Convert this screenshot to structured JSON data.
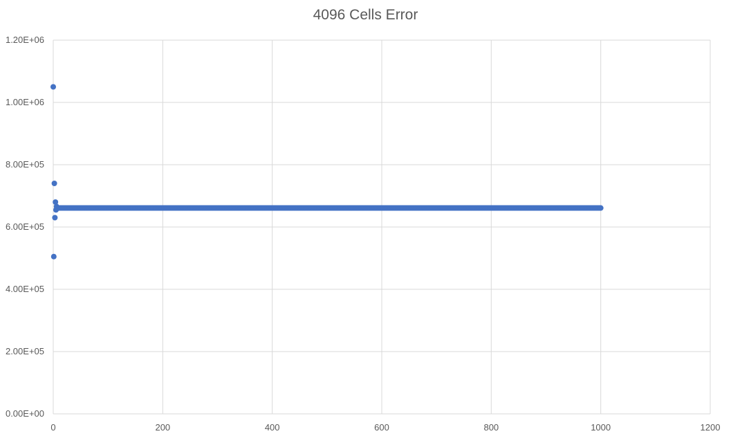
{
  "chart_data": {
    "type": "scatter",
    "title": "4096 Cells Error",
    "xlabel": "",
    "ylabel": "",
    "xlim": [
      0,
      1200
    ],
    "ylim": [
      0,
      1200000
    ],
    "x_ticks": [
      0,
      200,
      400,
      600,
      800,
      1000,
      1200
    ],
    "x_tick_labels": [
      "0",
      "200",
      "400",
      "600",
      "800",
      "1000",
      "1200"
    ],
    "y_ticks": [
      0,
      200000,
      400000,
      600000,
      800000,
      1000000,
      1200000
    ],
    "y_tick_labels": [
      "0.00E+00",
      "2.00E+05",
      "4.00E+05",
      "6.00E+05",
      "8.00E+05",
      "1.00E+06",
      "1.20E+06"
    ],
    "grid": true,
    "legend": "none",
    "marker_color": "#4472C4",
    "gridline_color": "#D9D9D9",
    "series": [
      {
        "points": [
          [
            0,
            1050000
          ],
          [
            1,
            505000
          ],
          [
            2,
            740000
          ],
          [
            3,
            630000
          ],
          [
            4,
            680000
          ],
          [
            5,
            655000
          ],
          [
            6,
            666000
          ],
          [
            7,
            659000
          ]
        ],
        "steady_range": {
          "x_start": 8,
          "x_end": 1000,
          "step": 1,
          "y": 661000
        }
      }
    ]
  }
}
